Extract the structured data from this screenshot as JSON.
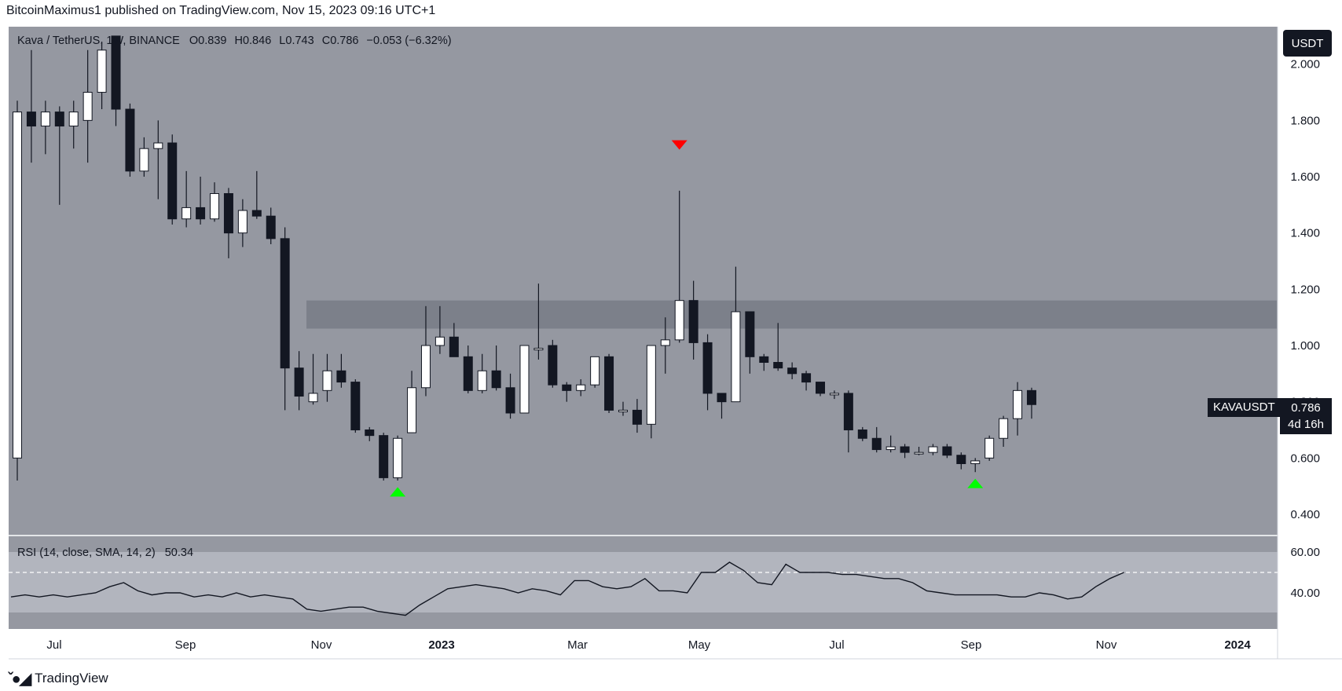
{
  "header": {
    "publisher": "BitcoinMaximus1 published on TradingView.com, Nov 15, 2023 09:16 UTC+1"
  },
  "legend": {
    "title": "Kava / TetherUS, 1W, BINANCE",
    "o_label": "O",
    "o": "0.839",
    "h_label": "H",
    "h": "0.846",
    "l_label": "L",
    "l": "0.743",
    "c_label": "C",
    "c": "0.786",
    "change": "−0.053 (−6.32%)"
  },
  "badges": {
    "currency": "USDT",
    "symbol": "KAVAUSDT",
    "price": "0.786",
    "countdown": "4d 16h"
  },
  "rsi": {
    "label": "RSI (14, close, SMA, 14, 2)",
    "value": "50.34",
    "ticks": [
      "60.00",
      "40.00"
    ]
  },
  "brand": {
    "name": "TradingView"
  },
  "colors": {
    "background": "#9598a1",
    "rsi_background": "#b2b5be",
    "zone": "#787b86",
    "up_body": "#ffffff",
    "down_body": "#131722",
    "arrow_down": "#ff0000",
    "arrow_up": "#00ff00"
  },
  "chart_data": {
    "type": "candlestick",
    "title": "Kava / TetherUS, 1W, BINANCE",
    "price_axis": {
      "ticks": [
        "2.000",
        "1.800",
        "1.600",
        "1.400",
        "1.200",
        "1.000",
        "0.800",
        "0.600",
        "0.400"
      ],
      "range": [
        0.33,
        2.1
      ]
    },
    "time_axis": {
      "labels": [
        "Jul",
        "Sep",
        "Nov",
        "2023",
        "Mar",
        "May",
        "Jul",
        "Sep",
        "Nov",
        "2024"
      ]
    },
    "resistance_zone": [
      1.06,
      1.16
    ],
    "candles": [
      [
        "0.60",
        "1.83",
        "0.52",
        "1.87"
      ],
      [
        "1.83",
        "1.78",
        "1.65",
        "2.05"
      ],
      [
        "1.78",
        "1.83",
        "1.68",
        "1.87"
      ],
      [
        "1.83",
        "1.78",
        "1.50",
        "1.85"
      ],
      [
        "1.78",
        "1.83",
        "1.70",
        "1.87"
      ],
      [
        "1.80",
        "1.90",
        "1.65",
        "2.05"
      ],
      [
        "1.90",
        "2.05",
        "1.84",
        "2.08"
      ],
      [
        "2.10",
        "1.84",
        "1.78",
        "2.10"
      ],
      [
        "1.84",
        "1.62",
        "1.60",
        "1.86"
      ],
      [
        "1.62",
        "1.70",
        "1.60",
        "1.74"
      ],
      [
        "1.70",
        "1.72",
        "1.52",
        "1.80"
      ],
      [
        "1.72",
        "1.45",
        "1.43",
        "1.75"
      ],
      [
        "1.45",
        "1.49",
        "1.42",
        "1.62"
      ],
      [
        "1.49",
        "1.45",
        "1.43",
        "1.60"
      ],
      [
        "1.45",
        "1.54",
        "1.44",
        "1.58"
      ],
      [
        "1.54",
        "1.40",
        "1.31",
        "1.56"
      ],
      [
        "1.40",
        "1.48",
        "1.35",
        "1.52"
      ],
      [
        "1.48",
        "1.46",
        "1.45",
        "1.62"
      ],
      [
        "1.46",
        "1.38",
        "1.36",
        "1.49"
      ],
      [
        "1.38",
        "0.92",
        "0.77",
        "1.42"
      ],
      [
        "0.92",
        "0.82",
        "0.77",
        "0.98"
      ],
      [
        "0.80",
        "0.83",
        "0.79",
        "0.97"
      ],
      [
        "0.84",
        "0.91",
        "0.80",
        "0.97"
      ],
      [
        "0.91",
        "0.87",
        "0.85",
        "0.97"
      ],
      [
        "0.87",
        "0.70",
        "0.69",
        "0.88"
      ],
      [
        "0.70",
        "0.68",
        "0.66",
        "0.71"
      ],
      [
        "0.68",
        "0.53",
        "0.52",
        "0.69"
      ],
      [
        "0.53",
        "0.67",
        "0.52",
        "0.68"
      ],
      [
        "0.69",
        "0.85",
        "0.69",
        "0.91"
      ],
      [
        "0.85",
        "1.00",
        "0.82",
        "1.14"
      ],
      [
        "1.00",
        "1.03",
        "0.97",
        "1.14"
      ],
      [
        "1.03",
        "0.96",
        "0.96",
        "1.08"
      ],
      [
        "0.96",
        "0.84",
        "0.83",
        "1.00"
      ],
      [
        "0.84",
        "0.91",
        "0.83",
        "0.97"
      ],
      [
        "0.91",
        "0.85",
        "0.84",
        "1.00"
      ],
      [
        "0.85",
        "0.76",
        "0.74",
        "0.90"
      ],
      [
        "0.76",
        "1.00",
        "0.76",
        "1.00"
      ],
      [
        "0.99",
        "0.99",
        "0.95",
        "1.22"
      ],
      [
        "1.00",
        "0.86",
        "0.85",
        "1.02"
      ],
      [
        "0.86",
        "0.84",
        "0.80",
        "0.87"
      ],
      [
        "0.84",
        "0.86",
        "0.82",
        "0.88"
      ],
      [
        "0.86",
        "0.96",
        "0.85",
        "0.96"
      ],
      [
        "0.96",
        "0.77",
        "0.76",
        "0.97"
      ],
      [
        "0.77",
        "0.77",
        "0.75",
        "0.80"
      ],
      [
        "0.77",
        "0.72",
        "0.69",
        "0.81"
      ],
      [
        "0.72",
        "1.00",
        "0.67",
        "1.00"
      ],
      [
        "1.00",
        "1.02",
        "0.90",
        "1.10"
      ],
      [
        "1.02",
        "1.16",
        "1.01",
        "1.55"
      ],
      [
        "1.16",
        "1.01",
        "0.95",
        "1.23"
      ],
      [
        "1.01",
        "0.83",
        "0.77",
        "1.04"
      ],
      [
        "0.83",
        "0.80",
        "0.74",
        "0.83"
      ],
      [
        "0.80",
        "1.12",
        "0.80",
        "1.28"
      ],
      [
        "1.12",
        "0.96",
        "0.90",
        "1.12"
      ],
      [
        "0.96",
        "0.94",
        "0.91",
        "0.97"
      ],
      [
        "0.94",
        "0.92",
        "0.91",
        "1.08"
      ],
      [
        "0.92",
        "0.90",
        "0.88",
        "0.94"
      ],
      [
        "0.90",
        "0.87",
        "0.84",
        "0.91"
      ],
      [
        "0.87",
        "0.83",
        "0.82",
        "0.87"
      ],
      [
        "0.83",
        "0.83",
        "0.81",
        "0.84"
      ],
      [
        "0.83",
        "0.70",
        "0.62",
        "0.84"
      ],
      [
        "0.70",
        "0.67",
        "0.66",
        "0.71"
      ],
      [
        "0.67",
        "0.63",
        "0.62",
        "0.71"
      ],
      [
        "0.63",
        "0.64",
        "0.62",
        "0.68"
      ],
      [
        "0.64",
        "0.62",
        "0.60",
        "0.65"
      ],
      [
        "0.62",
        "0.62",
        "0.61",
        "0.64"
      ],
      [
        "0.62",
        "0.64",
        "0.61",
        "0.65"
      ],
      [
        "0.64",
        "0.61",
        "0.60",
        "0.65"
      ],
      [
        "0.61",
        "0.58",
        "0.56",
        "0.62"
      ],
      [
        "0.58",
        "0.59",
        "0.55",
        "0.60"
      ],
      [
        "0.60",
        "0.67",
        "0.59",
        "0.68"
      ],
      [
        "0.67",
        "0.74",
        "0.64",
        "0.75"
      ],
      [
        "0.74",
        "0.84",
        "0.68",
        "0.87"
      ],
      [
        "0.84",
        "0.79",
        "0.74",
        "0.85"
      ]
    ],
    "rsi_series": [
      38,
      39,
      38,
      39,
      38,
      39,
      40,
      43,
      45,
      41,
      39,
      40,
      40,
      38,
      39,
      38,
      40,
      38,
      39,
      38,
      37,
      32,
      31,
      32,
      33,
      33,
      31,
      30,
      29,
      34,
      38,
      42,
      43,
      44,
      43,
      42,
      40,
      42,
      41,
      39,
      46,
      46,
      43,
      42,
      43,
      47,
      41,
      41,
      40,
      50,
      50,
      55,
      51,
      45,
      44,
      54,
      50,
      50,
      50,
      49,
      49,
      48,
      47,
      47,
      45,
      41,
      40,
      39,
      39,
      39,
      39,
      38,
      38,
      40,
      39,
      37,
      38,
      43,
      47,
      50
    ],
    "rsi_dashed_level": 50,
    "rsi_axis_range": [
      25,
      67
    ],
    "markers": [
      {
        "type": "down",
        "candle": 47,
        "price": 1.71
      },
      {
        "type": "up",
        "candle": 27,
        "price": 0.48
      },
      {
        "type": "up",
        "candle": 68,
        "price": 0.51
      }
    ]
  }
}
